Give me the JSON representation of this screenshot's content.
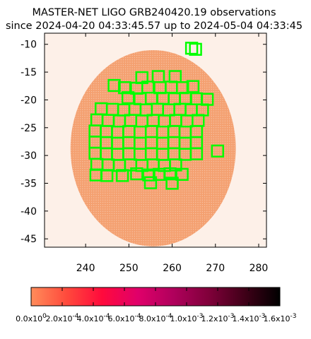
{
  "chart_data": {
    "type": "scatter",
    "title": "MASTER-NET LIGO GRB240420.19 observations",
    "subtitle": "since 2024-04-20 04:33:45.57 up to 2024-05-04 04:33:45",
    "xlabel": "",
    "ylabel": "",
    "xlim": [
      230.5,
      281.8
    ],
    "ylim": [
      -46.5,
      -8.0
    ],
    "x_ticks": [
      "240",
      "250",
      "260",
      "270",
      "280"
    ],
    "y_ticks": [
      "-10",
      "-15",
      "-20",
      "-25",
      "-30",
      "-35",
      "-40",
      "-45"
    ],
    "grid": false,
    "series": [
      {
        "role": "probability-map",
        "color": "#f4a070",
        "center": [
          255.6,
          -28.7
        ],
        "extent_x": [
          236.6,
          274.8
        ],
        "extent_y": [
          -46.3,
          -11.0
        ]
      },
      {
        "role": "observed-fields",
        "color": "#00ff00",
        "fields": [
          [
            264.5,
            -10.7
          ],
          [
            265.4,
            -10.9
          ],
          [
            253.0,
            -16.0
          ],
          [
            256.8,
            -15.8
          ],
          [
            260.7,
            -15.8
          ],
          [
            246.6,
            -17.4
          ],
          [
            249.0,
            -17.8
          ],
          [
            251.8,
            -17.9
          ],
          [
            254.4,
            -17.7
          ],
          [
            257.2,
            -17.8
          ],
          [
            259.8,
            -17.7
          ],
          [
            262.4,
            -17.8
          ],
          [
            264.8,
            -17.6
          ],
          [
            249.8,
            -19.6
          ],
          [
            252.6,
            -19.8
          ],
          [
            255.2,
            -19.7
          ],
          [
            257.9,
            -19.7
          ],
          [
            260.5,
            -19.8
          ],
          [
            263.1,
            -19.7
          ],
          [
            265.6,
            -19.8
          ],
          [
            268.1,
            -19.9
          ],
          [
            243.6,
            -21.6
          ],
          [
            246.2,
            -21.7
          ],
          [
            248.8,
            -21.8
          ],
          [
            251.4,
            -21.7
          ],
          [
            254.0,
            -21.8
          ],
          [
            256.6,
            -21.7
          ],
          [
            259.2,
            -21.8
          ],
          [
            261.8,
            -21.7
          ],
          [
            264.4,
            -21.8
          ],
          [
            267.0,
            -21.8
          ],
          [
            242.6,
            -23.6
          ],
          [
            245.2,
            -23.7
          ],
          [
            247.8,
            -23.8
          ],
          [
            250.4,
            -23.7
          ],
          [
            253.0,
            -23.8
          ],
          [
            255.6,
            -23.7
          ],
          [
            258.2,
            -23.8
          ],
          [
            260.8,
            -23.7
          ],
          [
            263.4,
            -23.8
          ],
          [
            266.0,
            -23.7
          ],
          [
            242.2,
            -25.6
          ],
          [
            244.8,
            -25.7
          ],
          [
            247.4,
            -25.8
          ],
          [
            250.0,
            -25.7
          ],
          [
            252.6,
            -25.8
          ],
          [
            255.2,
            -25.7
          ],
          [
            257.8,
            -25.8
          ],
          [
            260.4,
            -25.7
          ],
          [
            263.0,
            -25.8
          ],
          [
            265.6,
            -25.7
          ],
          [
            242.2,
            -27.6
          ],
          [
            244.8,
            -27.7
          ],
          [
            247.4,
            -27.8
          ],
          [
            250.0,
            -27.7
          ],
          [
            252.6,
            -27.8
          ],
          [
            255.2,
            -27.7
          ],
          [
            257.8,
            -27.8
          ],
          [
            260.4,
            -27.7
          ],
          [
            263.0,
            -27.8
          ],
          [
            265.6,
            -27.7
          ],
          [
            242.2,
            -29.6
          ],
          [
            244.8,
            -29.7
          ],
          [
            247.4,
            -29.8
          ],
          [
            250.0,
            -29.7
          ],
          [
            252.6,
            -29.8
          ],
          [
            255.2,
            -29.7
          ],
          [
            257.8,
            -29.8
          ],
          [
            260.4,
            -29.7
          ],
          [
            263.0,
            -29.8
          ],
          [
            265.6,
            -29.7
          ],
          [
            270.5,
            -29.2
          ],
          [
            242.6,
            -31.6
          ],
          [
            245.2,
            -31.7
          ],
          [
            247.8,
            -31.8
          ],
          [
            250.4,
            -31.7
          ],
          [
            253.0,
            -31.8
          ],
          [
            255.6,
            -31.7
          ],
          [
            258.2,
            -31.8
          ],
          [
            260.8,
            -31.7
          ],
          [
            242.4,
            -33.5
          ],
          [
            244.9,
            -33.6
          ],
          [
            248.5,
            -33.6
          ],
          [
            251.8,
            -33.3
          ],
          [
            254.6,
            -33.5
          ],
          [
            257.0,
            -33.4
          ],
          [
            259.5,
            -33.3
          ],
          [
            262.3,
            -33.4
          ],
          [
            255.0,
            -34.9
          ],
          [
            260.0,
            -35.0
          ]
        ]
      }
    ],
    "colorbar": {
      "colors": [
        "#ff8c5a",
        "#ff4a3c",
        "#ff0a3c",
        "#e0006a",
        "#b0005c",
        "#80003a",
        "#400018",
        "#000000"
      ],
      "labels": [
        "0.0x10",
        "2.0x10",
        "4.0x10",
        "6.0x10",
        "8.0x10",
        "1.0x10",
        "1.2x10",
        "1.4x10",
        "1.6x10"
      ],
      "exponents": [
        "0",
        "-4",
        "-4",
        "-4",
        "-4",
        "-3",
        "-3",
        "-3",
        "-3"
      ]
    }
  }
}
